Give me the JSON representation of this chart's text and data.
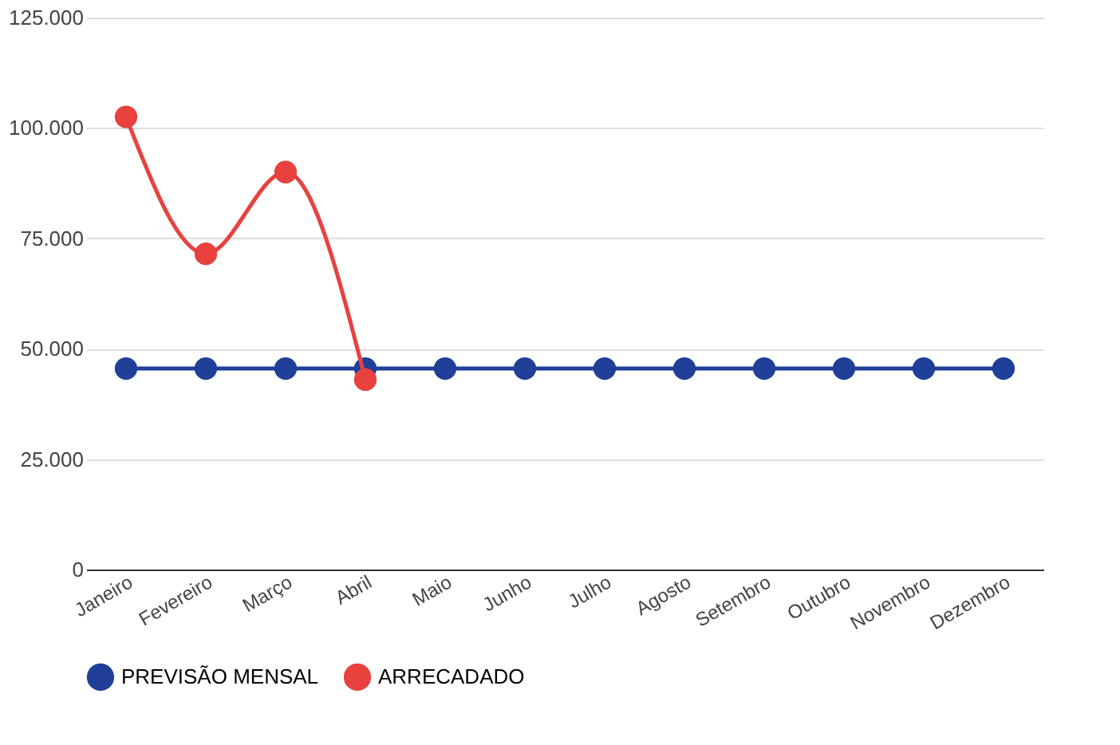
{
  "chart_data": {
    "type": "line",
    "categories": [
      "Janeiro",
      "Fevereiro",
      "Março",
      "Abril",
      "Maio",
      "Junho",
      "Julho",
      "Agosto",
      "Setembro",
      "Outubro",
      "Novembro",
      "Dezembro"
    ],
    "series": [
      {
        "name": "PREVISÃO MENSAL",
        "color": "#1f3f98",
        "values": [
          45500,
          45500,
          45500,
          45500,
          45500,
          45500,
          45500,
          45500,
          45500,
          45500,
          45500,
          45500
        ]
      },
      {
        "name": "ARRECADADO",
        "color": "#e8413e",
        "values": [
          102500,
          71500,
          90000,
          43000,
          null,
          null,
          null,
          null,
          null,
          null,
          null,
          null
        ]
      }
    ],
    "ylim": [
      0,
      125000
    ],
    "yticks": [
      {
        "value": 0,
        "label": "0"
      },
      {
        "value": 25000,
        "label": "25.000"
      },
      {
        "value": 50000,
        "label": "50.000"
      },
      {
        "value": 75000,
        "label": "75.000"
      },
      {
        "value": 100000,
        "label": "100.000"
      },
      {
        "value": 125000,
        "label": "125.000"
      }
    ],
    "grid": "y",
    "legend": "bottom",
    "marker": "circle",
    "line_style": "solid"
  }
}
